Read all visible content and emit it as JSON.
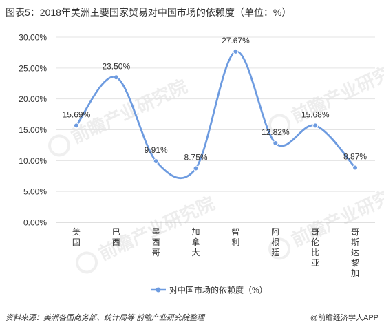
{
  "title": "图表5：2018年美洲主要国家贸易对中国市场的依赖度（单位：%）",
  "footer": {
    "source": "资料来源：美洲各国商务部、统计局等 前瞻产业研究院整理",
    "credit": "@前瞻经济学人APP"
  },
  "watermark": "前瞻产业研究院",
  "colors": {
    "series": "#6d9be0",
    "grid": "#e3e3e3",
    "text": "#333333"
  },
  "chart_data": {
    "type": "line",
    "smooth": true,
    "categories": [
      "美国",
      "巴西",
      "墨西哥",
      "加拿大",
      "智利",
      "阿根廷",
      "哥伦比亚",
      "哥斯达黎加"
    ],
    "series": [
      {
        "name": "对中国市场的依赖度（%）",
        "values": [
          15.69,
          23.5,
          9.91,
          8.75,
          27.67,
          12.82,
          15.68,
          8.87
        ],
        "labels": [
          "15.69%",
          "23.50%",
          "9.91%",
          "8.75%",
          "27.67%",
          "12.82%",
          "15.68%",
          "8.87%"
        ]
      }
    ],
    "ylim": [
      0,
      30
    ],
    "yticks": [
      "0.00%",
      "5.00%",
      "10.00%",
      "15.00%",
      "20.00%",
      "25.00%",
      "30.00%"
    ],
    "grid": true,
    "legend": "bottom"
  }
}
